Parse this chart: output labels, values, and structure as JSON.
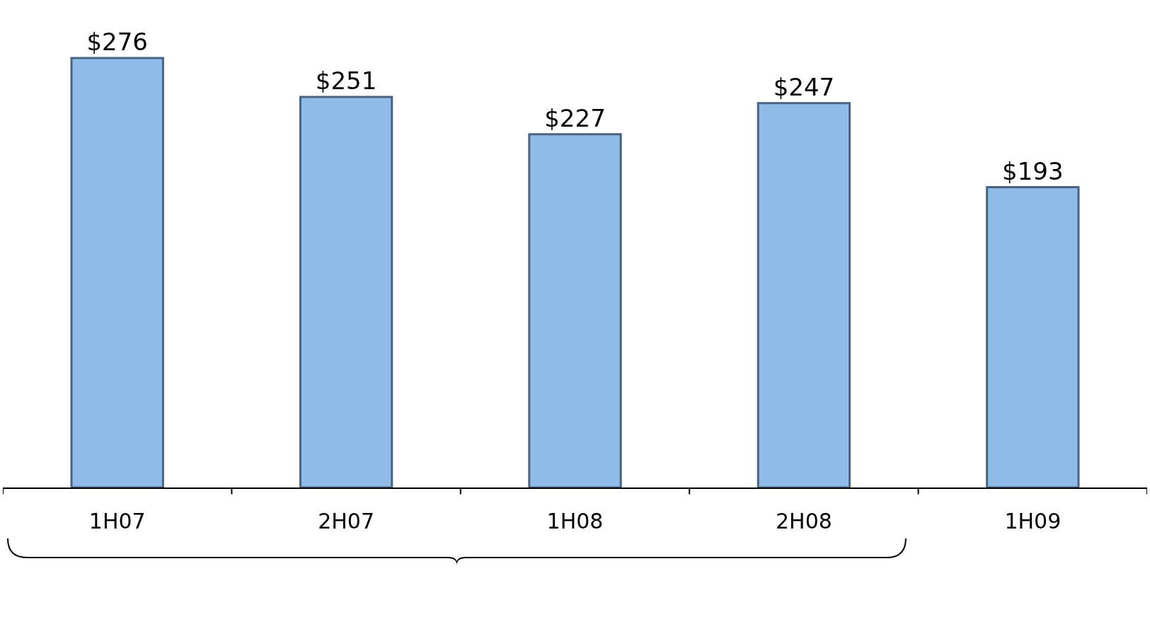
{
  "chart_data": {
    "type": "bar",
    "categories": [
      "1H07",
      "2H07",
      "1H08",
      "2H08",
      "1H09"
    ],
    "values": [
      276,
      251,
      227,
      247,
      193
    ],
    "value_labels": [
      "$276",
      "$251",
      "$227",
      "$247",
      "$193"
    ],
    "color": "#8fbbe8"
  }
}
